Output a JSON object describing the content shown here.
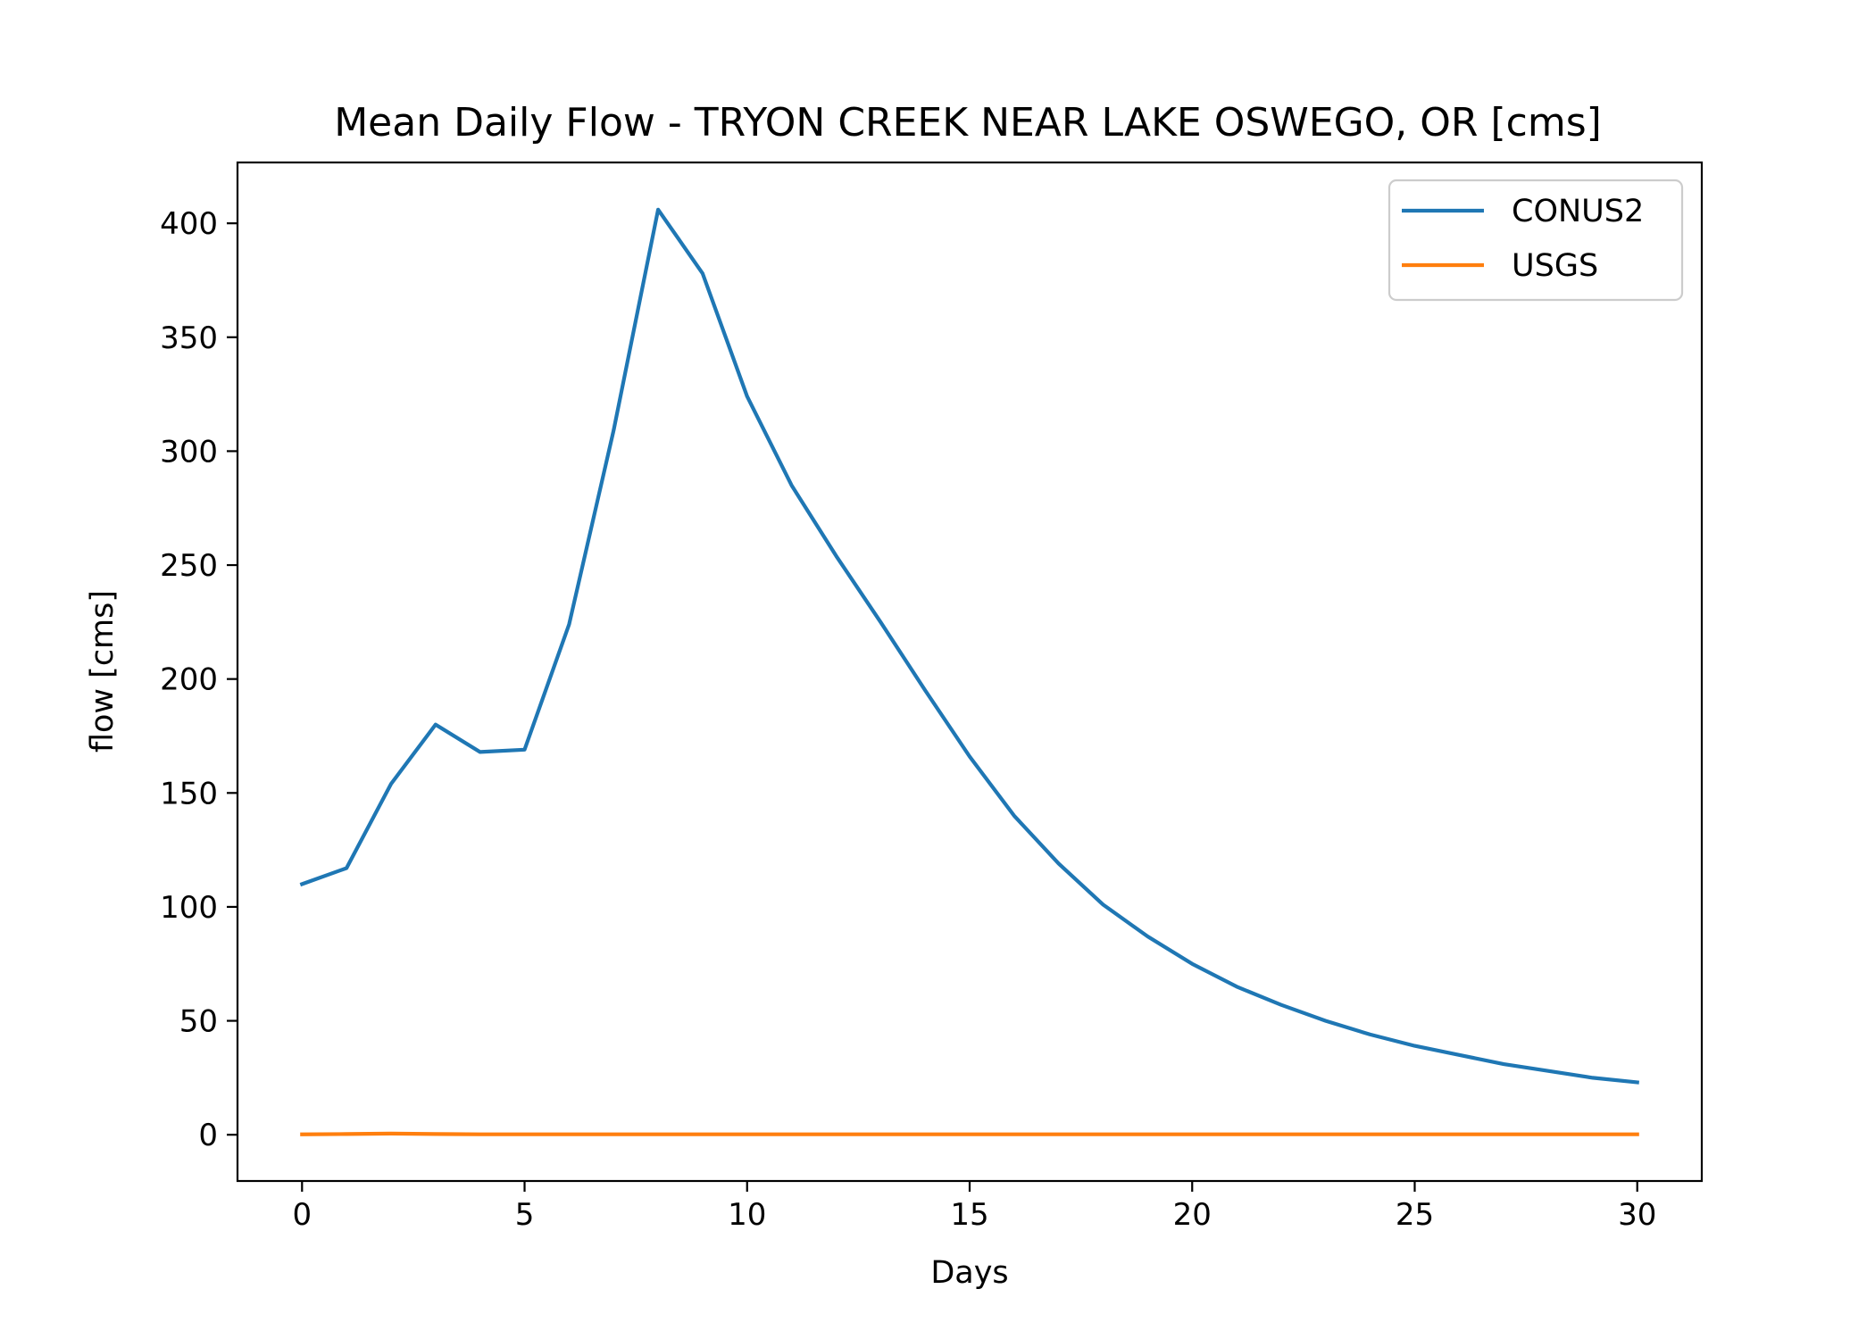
{
  "chart_data": {
    "type": "line",
    "title": "Mean Daily Flow - TRYON CREEK NEAR LAKE OSWEGO, OR [cms]",
    "xlabel": "Days",
    "ylabel": "flow [cms]",
    "xlim": [
      -1.45,
      31.45
    ],
    "ylim": [
      -20.3,
      426.7
    ],
    "xticks": [
      0,
      5,
      10,
      15,
      20,
      25,
      30
    ],
    "yticks": [
      0,
      50,
      100,
      150,
      200,
      250,
      300,
      350,
      400
    ],
    "grid": false,
    "legend": "top-right",
    "series": [
      {
        "name": "CONUS2",
        "color": "#1f77b4",
        "x": [
          0,
          1,
          2,
          3,
          4,
          5,
          6,
          7,
          8,
          9,
          10,
          11,
          12,
          13,
          14,
          15,
          16,
          17,
          18,
          19,
          20,
          21,
          22,
          23,
          24,
          25,
          26,
          27,
          28,
          29,
          30
        ],
        "values": [
          110,
          117,
          154,
          180,
          168,
          169,
          224,
          309,
          406,
          378,
          324,
          285,
          254,
          225,
          195,
          166,
          140,
          119,
          101,
          87,
          75,
          65,
          57,
          50,
          44,
          39,
          35,
          31,
          28,
          25,
          23
        ]
      },
      {
        "name": "USGS",
        "color": "#ff7f0e",
        "x": [
          0,
          1,
          2,
          3,
          4,
          5,
          6,
          7,
          8,
          9,
          10,
          11,
          12,
          13,
          14,
          15,
          16,
          17,
          18,
          19,
          20,
          21,
          22,
          23,
          24,
          25,
          26,
          27,
          28,
          29,
          30
        ],
        "values": [
          0.2,
          0.3,
          0.5,
          0.3,
          0.2,
          0.2,
          0.2,
          0.2,
          0.2,
          0.2,
          0.2,
          0.2,
          0.2,
          0.2,
          0.2,
          0.2,
          0.2,
          0.2,
          0.2,
          0.2,
          0.2,
          0.2,
          0.2,
          0.2,
          0.2,
          0.2,
          0.2,
          0.2,
          0.2,
          0.2,
          0.2
        ]
      }
    ]
  }
}
